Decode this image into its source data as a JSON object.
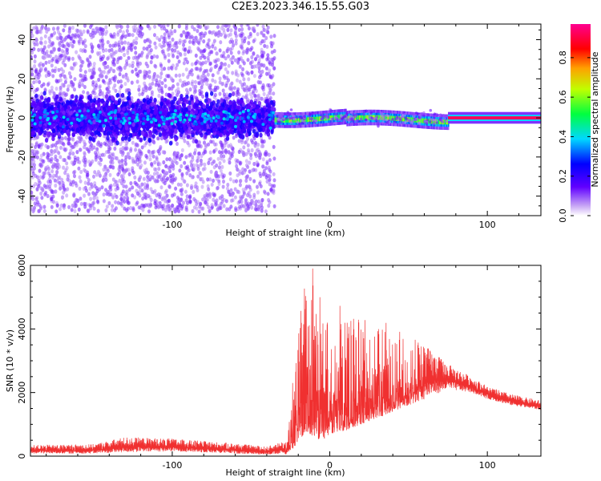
{
  "title": "C2E3.2023.346.15.55.G03",
  "chart_data": [
    {
      "type": "heatmap",
      "xlabel": "Height of straight line (km)",
      "ylabel": "Frequency (Hz)",
      "xlim": [
        -190,
        134
      ],
      "ylim": [
        -50,
        48
      ],
      "xticks": [
        -100,
        0,
        100
      ],
      "yticks": [
        -40,
        -20,
        0,
        20,
        40
      ],
      "colorbar": {
        "label": "Normalized spectral amplitude",
        "range": [
          0,
          0.97
        ],
        "ticks": [
          "0.0",
          "0.2",
          "0.4",
          "0.6",
          "0.8"
        ],
        "tick_values": [
          0.0,
          0.2,
          0.4,
          0.6,
          0.8
        ],
        "colors": [
          "#ffffff",
          "#b070f0",
          "#6000ff",
          "#0000ff",
          "#00e0ff",
          "#00ff40",
          "#c0ff00",
          "#ffa000",
          "#ff0000",
          "#ff0090"
        ]
      },
      "regions": [
        {
          "x_range": [
            -190,
            -35
          ],
          "center_hz": 0,
          "core_halfwidth_hz": 10,
          "scatter_halfwidth_hz": 48,
          "amplitude": 0.25
        },
        {
          "x_range": [
            -35,
            75
          ],
          "center_hz": 0,
          "core_halfwidth_hz": 3,
          "amplitude": 0.55
        },
        {
          "x_range": [
            75,
            134
          ],
          "center_hz": 0,
          "core_halfwidth_hz": 1,
          "amplitude": 0.95
        }
      ]
    },
    {
      "type": "line",
      "xlabel": "Height of straight line (km)",
      "ylabel": "SNR (10 * v/v)",
      "xlim": [
        -190,
        134
      ],
      "ylim": [
        0,
        6000
      ],
      "xticks": [
        -100,
        0,
        100
      ],
      "yticks": [
        0,
        2000,
        4000,
        6000
      ],
      "series_color": "#f03030",
      "envelope": {
        "x": [
          -190,
          -150,
          -130,
          -100,
          -60,
          -40,
          -28,
          -22,
          -15,
          -10,
          -5,
          0,
          10,
          20,
          30,
          40,
          50,
          60,
          75,
          90,
          100,
          115,
          134
        ],
        "lower": [
          80,
          80,
          120,
          150,
          80,
          50,
          60,
          300,
          800,
          600,
          500,
          700,
          800,
          1000,
          1200,
          1400,
          1600,
          1800,
          2100,
          2000,
          1800,
          1600,
          1450
        ],
        "upper": [
          350,
          380,
          600,
          550,
          400,
          300,
          500,
          3200,
          5900,
          6000,
          4700,
          5000,
          4600,
          4300,
          4300,
          4200,
          3800,
          3500,
          2900,
          2500,
          2200,
          1950,
          1750
        ]
      }
    }
  ]
}
